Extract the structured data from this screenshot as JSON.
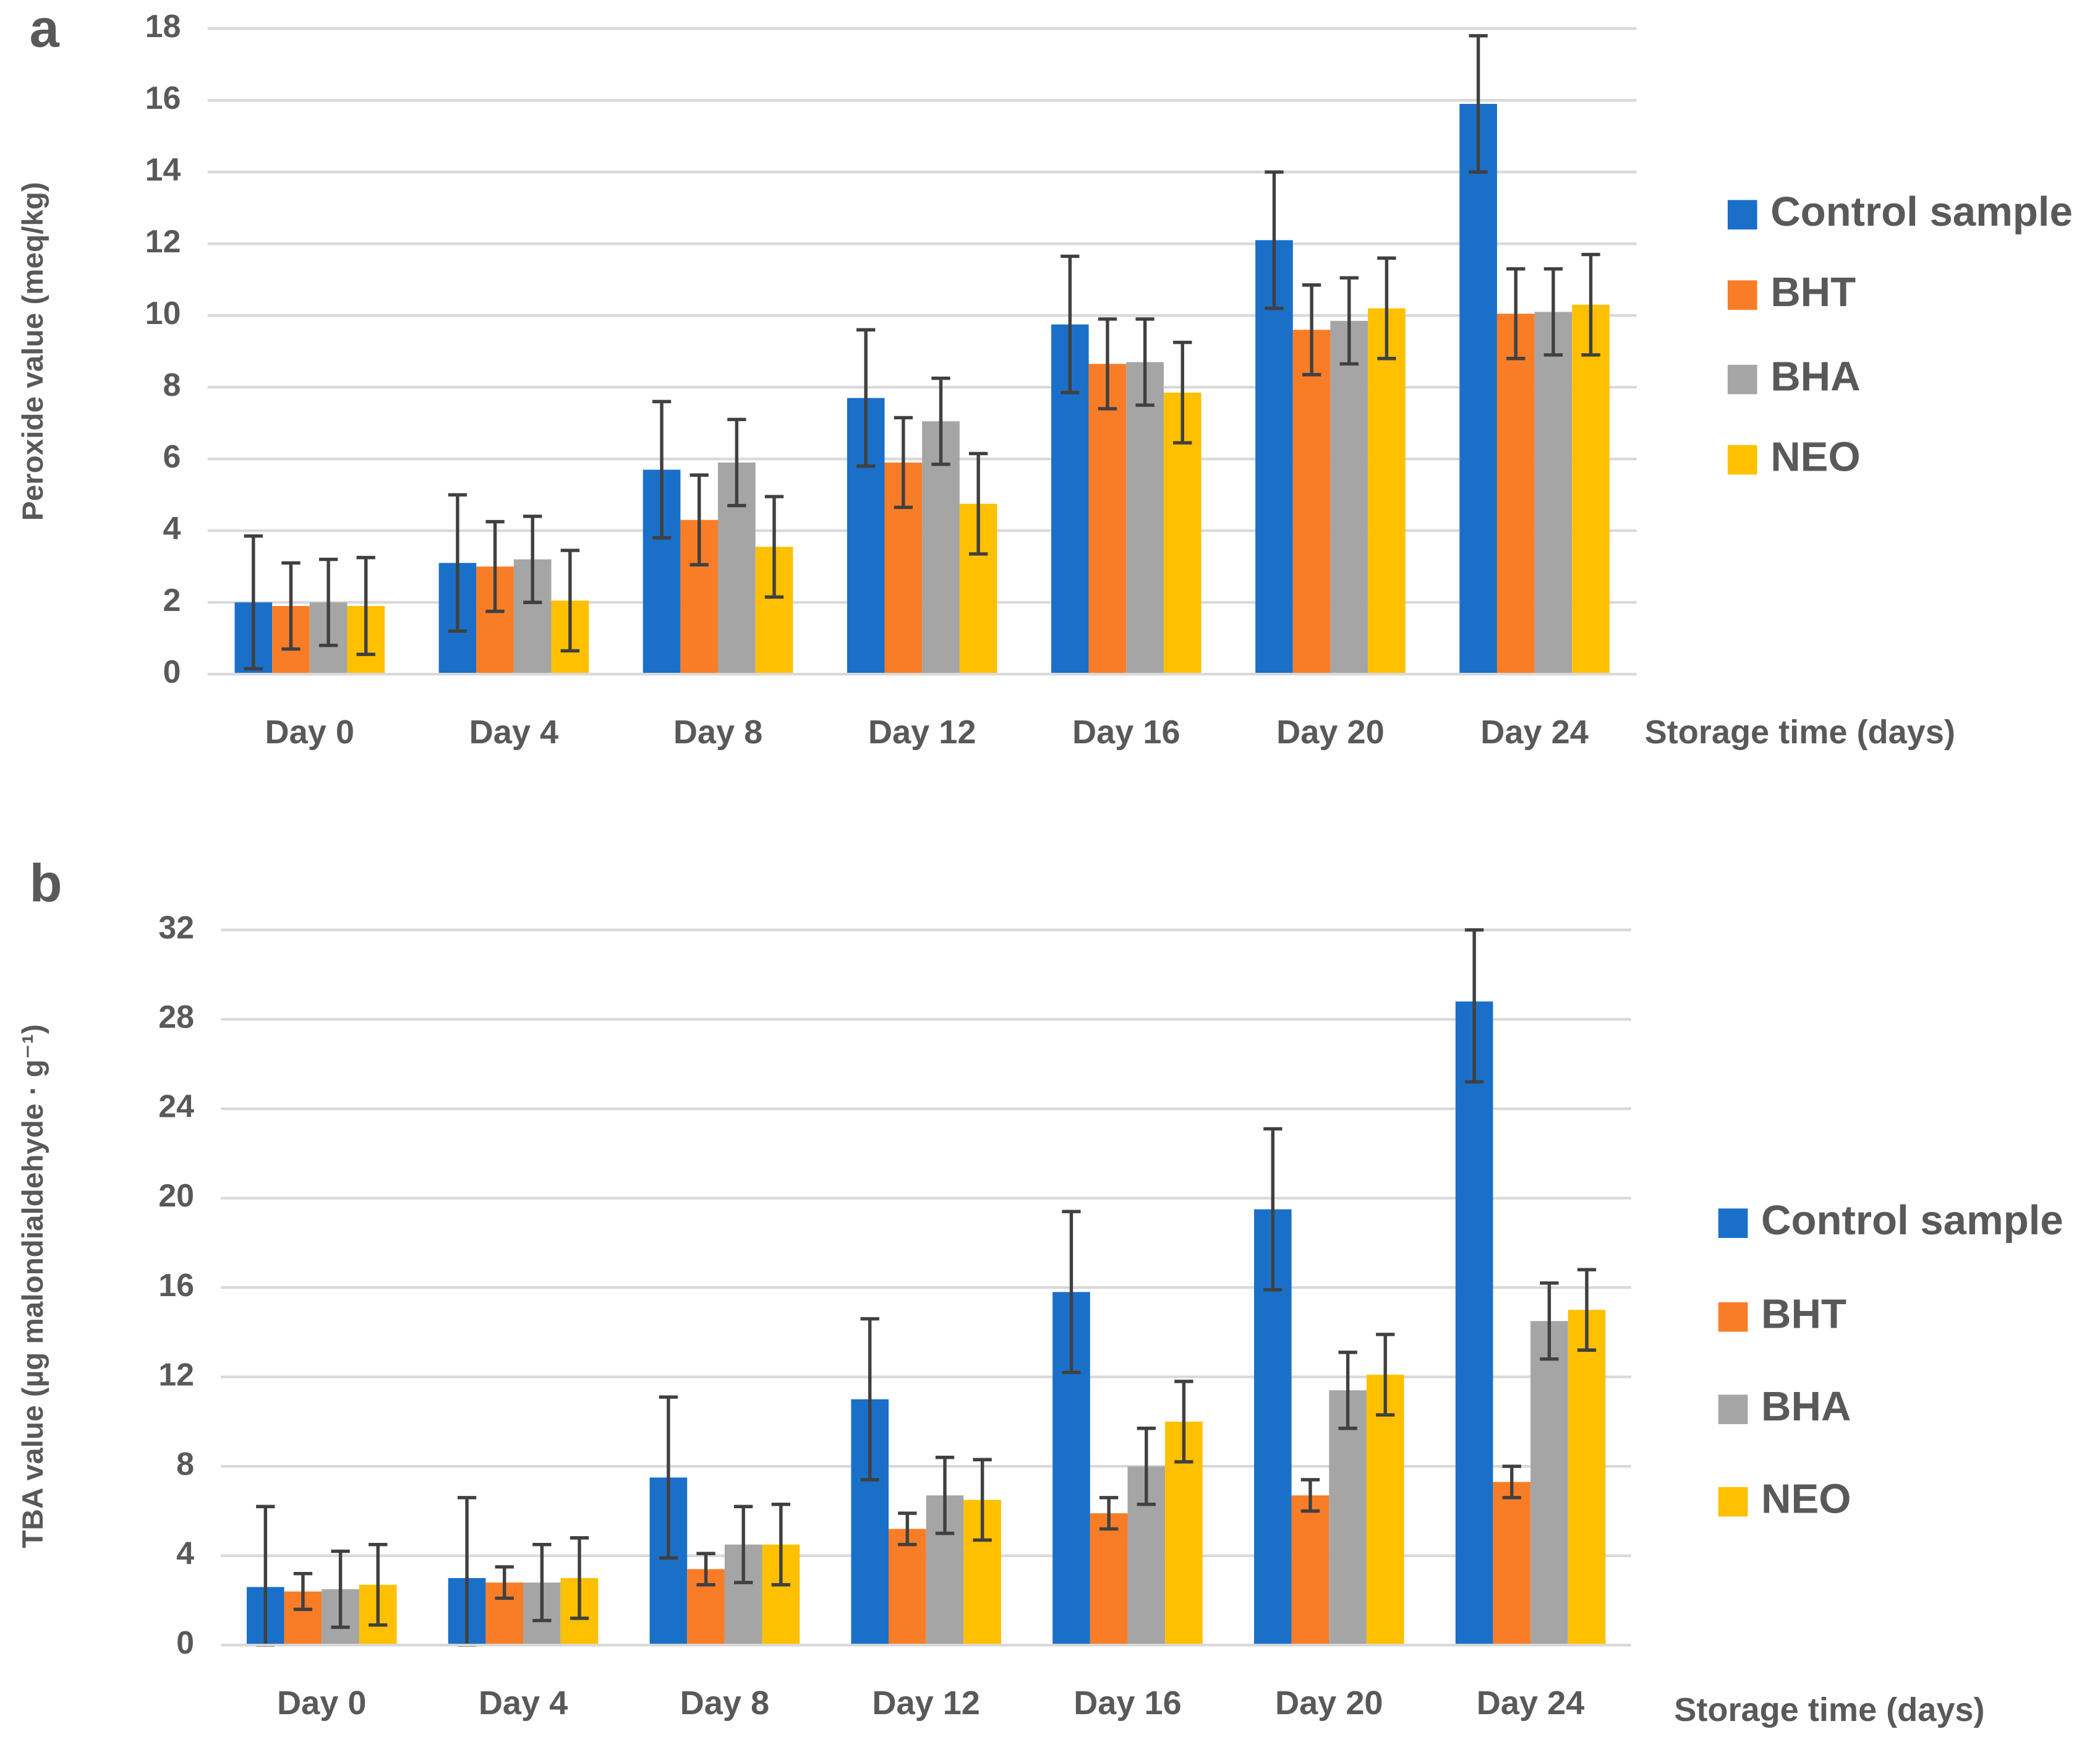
{
  "chart_data": [
    {
      "type": "bar",
      "label": "a",
      "ylabel": "Peroxide value (meq/kg)",
      "xlabel": "Storage time (days)",
      "categories": [
        "Day 0",
        "Day 4",
        "Day 8",
        "Day 12",
        "Day 16",
        "Day 20",
        "Day 24"
      ],
      "ylim": [
        0,
        18
      ],
      "yticks": [
        0,
        2,
        4,
        6,
        8,
        10,
        12,
        14,
        16,
        18
      ],
      "grid": true,
      "legend": "right",
      "series": [
        {
          "name": "Control sample",
          "color": "#1a70c8",
          "values": [
            2.0,
            3.1,
            5.7,
            7.7,
            9.75,
            12.1,
            15.9
          ],
          "errors": [
            1.85,
            1.9,
            1.9,
            1.9,
            1.9,
            1.9,
            1.9
          ]
        },
        {
          "name": "BHT",
          "color": "#f97d27",
          "values": [
            1.9,
            3.0,
            4.3,
            5.9,
            8.65,
            9.6,
            10.05
          ],
          "errors": [
            1.2,
            1.25,
            1.25,
            1.25,
            1.25,
            1.25,
            1.25
          ]
        },
        {
          "name": "BHA",
          "color": "#a5a5a5",
          "values": [
            2.0,
            3.2,
            5.9,
            7.05,
            8.7,
            9.85,
            10.1
          ],
          "errors": [
            1.2,
            1.2,
            1.2,
            1.2,
            1.2,
            1.2,
            1.2
          ]
        },
        {
          "name": "NEO",
          "color": "#ffc000",
          "values": [
            1.9,
            2.05,
            3.55,
            4.75,
            7.85,
            10.2,
            10.3
          ],
          "errors": [
            1.35,
            1.4,
            1.4,
            1.4,
            1.4,
            1.4,
            1.4
          ]
        }
      ]
    },
    {
      "type": "bar",
      "label": "b",
      "ylabel": "TBA value (µg malondialdehyde · g⁻¹)",
      "xlabel": "Storage time (days)",
      "categories": [
        "Day 0",
        "Day 4",
        "Day 8",
        "Day 12",
        "Day 16",
        "Day 20",
        "Day 24"
      ],
      "ylim": [
        0,
        32
      ],
      "yticks": [
        0,
        4,
        8,
        12,
        16,
        20,
        24,
        28,
        32
      ],
      "grid": true,
      "legend": "right",
      "series": [
        {
          "name": "Control sample",
          "color": "#1a70c8",
          "values": [
            2.6,
            3.0,
            7.5,
            11.0,
            15.8,
            19.5,
            28.8
          ],
          "errors": [
            3.6,
            3.6,
            3.6,
            3.6,
            3.6,
            3.6,
            3.6
          ]
        },
        {
          "name": "BHT",
          "color": "#f97d27",
          "values": [
            2.4,
            2.8,
            3.4,
            5.2,
            5.9,
            6.7,
            7.3
          ],
          "errors": [
            0.8,
            0.7,
            0.7,
            0.7,
            0.7,
            0.7,
            0.7
          ]
        },
        {
          "name": "BHA",
          "color": "#a5a5a5",
          "values": [
            2.5,
            2.8,
            4.5,
            6.7,
            8.0,
            11.4,
            14.5
          ],
          "errors": [
            1.7,
            1.7,
            1.7,
            1.7,
            1.7,
            1.7,
            1.7
          ]
        },
        {
          "name": "NEO",
          "color": "#ffc000",
          "values": [
            2.7,
            3.0,
            4.5,
            6.5,
            10.0,
            12.1,
            15.0
          ],
          "errors": [
            1.8,
            1.8,
            1.8,
            1.8,
            1.8,
            1.8,
            1.8
          ]
        }
      ]
    }
  ]
}
